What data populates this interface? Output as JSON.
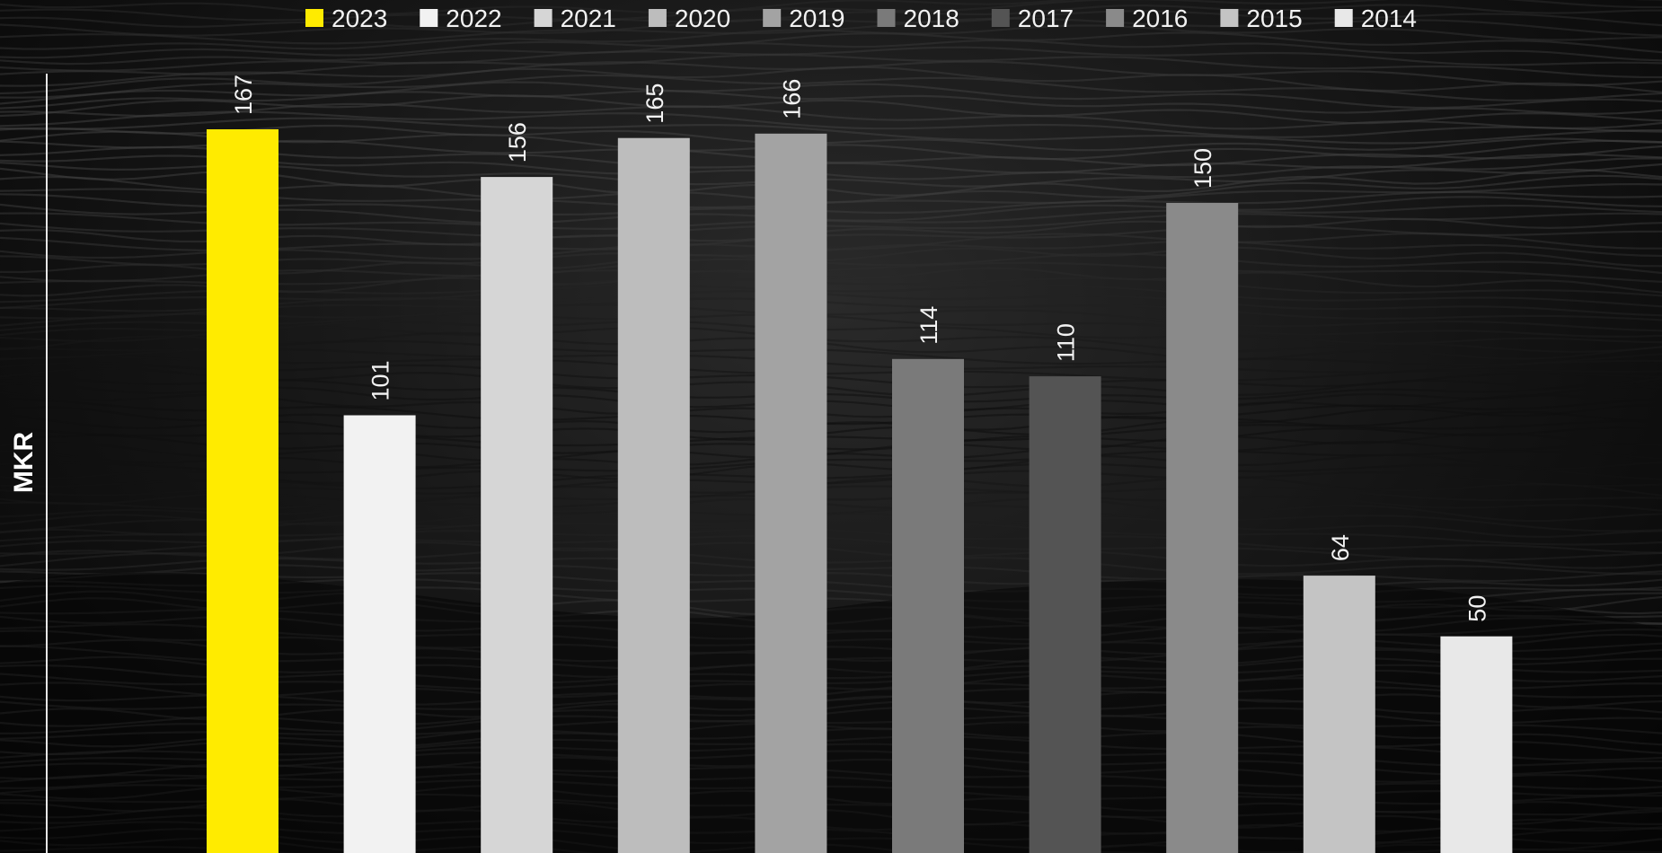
{
  "chart_data": {
    "type": "bar",
    "categories": [
      "2023",
      "2022",
      "2021",
      "2020",
      "2019",
      "2018",
      "2017",
      "2016",
      "2015",
      "2014"
    ],
    "values": [
      167,
      101,
      156,
      165,
      166,
      114,
      110,
      150,
      64,
      50
    ],
    "colors": [
      "#ffeb00",
      "#f2f2f2",
      "#d6d6d6",
      "#bdbdbd",
      "#a3a3a3",
      "#7a7a7a",
      "#545454",
      "#8a8a8a",
      "#c4c4c4",
      "#e8e8e8"
    ],
    "legend": [
      "2023",
      "2022",
      "2021",
      "2020",
      "2019",
      "2018",
      "2017",
      "2016",
      "2015",
      "2014"
    ],
    "ylabel": "MKR",
    "xlabel": "",
    "title": "",
    "ylim": [
      0,
      167
    ],
    "grid": false,
    "legend_position": "top-center",
    "data_labels": [
      "167",
      "101",
      "156",
      "165",
      "166",
      "114",
      "110",
      "150",
      "64",
      "50"
    ]
  }
}
